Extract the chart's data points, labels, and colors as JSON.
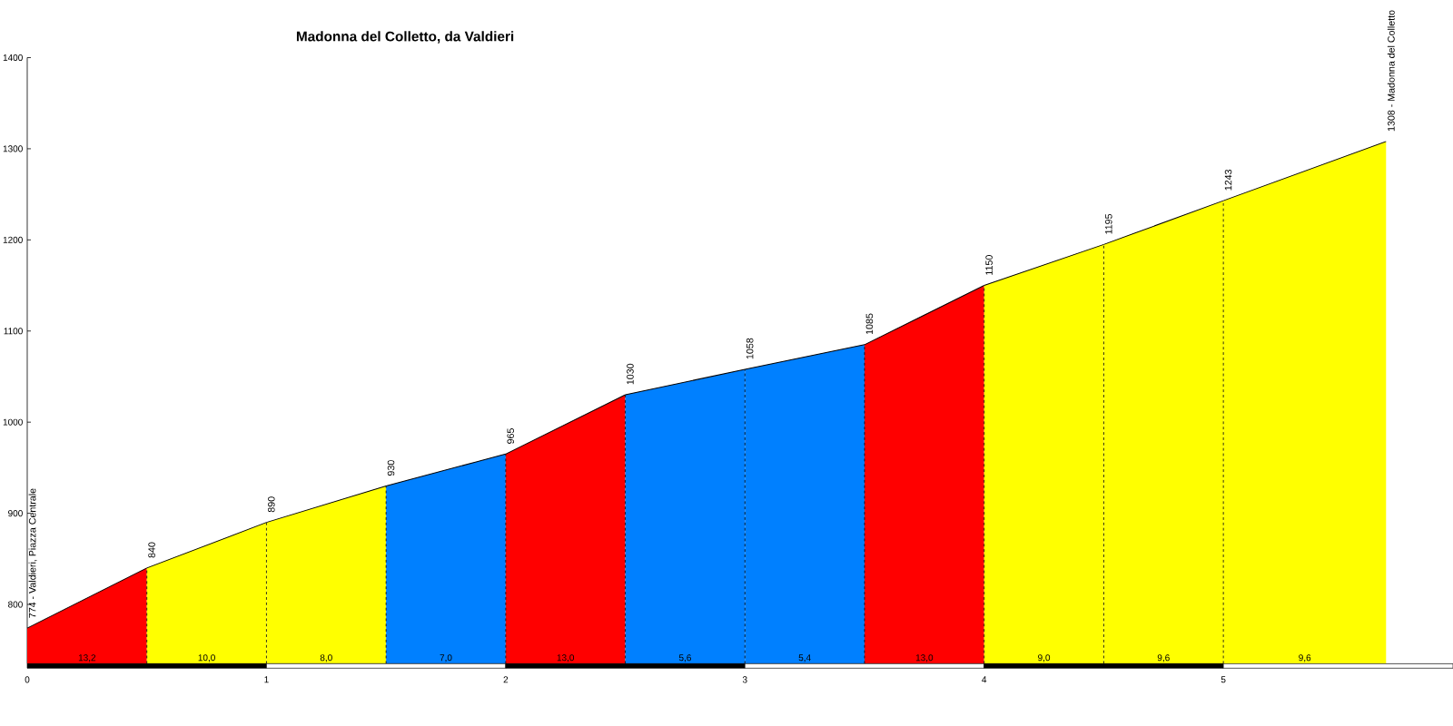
{
  "chart_data": {
    "type": "area",
    "title": "Madonna del Colletto, da Valdieri",
    "xlim": [
      0,
      5.96
    ],
    "xticks": [
      0,
      1,
      2,
      3,
      4,
      5
    ],
    "ylim": [
      735,
      1400
    ],
    "yticks": [
      800,
      900,
      1000,
      1100,
      1200,
      1300,
      1400
    ],
    "series": [
      {
        "color": "#ff0000",
        "x": [
          0,
          0.5
        ],
        "values": [
          774,
          840
        ],
        "value_labels": [
          "774 - Valdieri, Piazza Centrale",
          "840"
        ]
      },
      {
        "color": "#ffff00",
        "x": [
          0.5,
          1
        ],
        "values": [
          840,
          890
        ],
        "value_labels": [
          null,
          "890"
        ]
      },
      {
        "color": "#ffff00",
        "x": [
          1,
          1.5
        ],
        "values": [
          890,
          930
        ],
        "value_labels": [
          null,
          "930"
        ]
      },
      {
        "color": "#0080ff",
        "x": [
          1.5,
          2
        ],
        "values": [
          930,
          965
        ],
        "value_labels": [
          null,
          "965"
        ]
      },
      {
        "color": "#ff0000",
        "x": [
          2,
          2.5
        ],
        "values": [
          965,
          1030
        ],
        "value_labels": [
          null,
          "1030"
        ]
      },
      {
        "color": "#0080ff",
        "x": [
          2.5,
          3
        ],
        "values": [
          1030,
          1058
        ],
        "value_labels": [
          null,
          "1058"
        ]
      },
      {
        "color": "#0080ff",
        "x": [
          3,
          3.5
        ],
        "values": [
          1058,
          1085
        ],
        "value_labels": [
          null,
          "1085"
        ]
      },
      {
        "color": "#ff0000",
        "x": [
          3.5,
          4
        ],
        "values": [
          1085,
          1150
        ],
        "value_labels": [
          null,
          "1150"
        ]
      },
      {
        "color": "#ffff00",
        "x": [
          4,
          4.5
        ],
        "values": [
          1150,
          1195
        ],
        "value_labels": [
          null,
          "1195"
        ]
      },
      {
        "color": "#ffff00",
        "x": [
          4.5,
          5
        ],
        "values": [
          1195,
          1243
        ],
        "value_labels": [
          null,
          "1243"
        ]
      },
      {
        "color": "#ffff00",
        "x": [
          5,
          5.68
        ],
        "values": [
          1243,
          1308
        ],
        "value_labels": [
          null,
          "1308 - Madonna del Colletto"
        ]
      }
    ],
    "annotations": [
      "13,2",
      "10,0",
      "8,0",
      "7,0",
      "13,0",
      "5,6",
      "5,4",
      "13,0",
      "9,0",
      "9,6",
      "9,6"
    ]
  }
}
